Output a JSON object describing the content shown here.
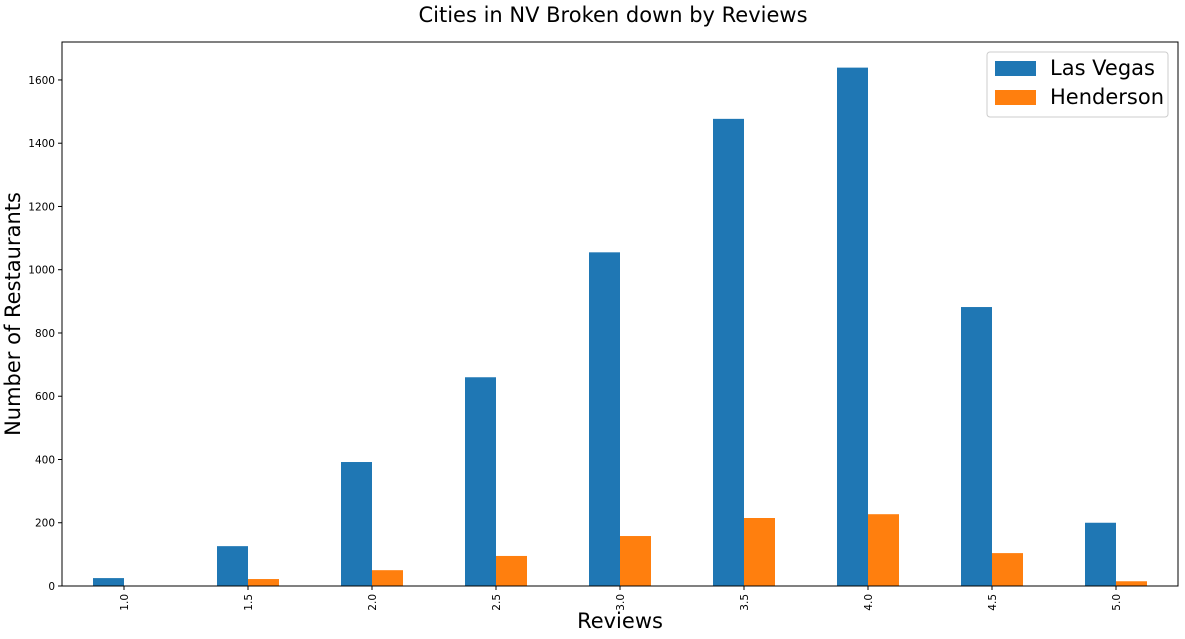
{
  "chart_data": {
    "type": "bar",
    "title": "Cities in NV Broken down by Reviews",
    "xlabel": "Reviews",
    "ylabel": "Number of Restaurants",
    "categories": [
      "1.0",
      "1.5",
      "2.0",
      "2.5",
      "3.0",
      "3.5",
      "4.0",
      "4.5",
      "5.0"
    ],
    "series": [
      {
        "name": "Las Vegas",
        "color": "#1f77b4",
        "values": [
          25,
          126,
          392,
          660,
          1055,
          1477,
          1639,
          882,
          200
        ]
      },
      {
        "name": "Henderson",
        "color": "#ff7f0e",
        "values": [
          0,
          22,
          50,
          95,
          158,
          215,
          227,
          104,
          15
        ]
      }
    ],
    "yticks": [
      "0",
      "200",
      "400",
      "600",
      "800",
      "1000",
      "1200",
      "1400",
      "1600"
    ],
    "ylim": [
      0,
      1720
    ],
    "grid": false,
    "legend_position": "top-right"
  }
}
